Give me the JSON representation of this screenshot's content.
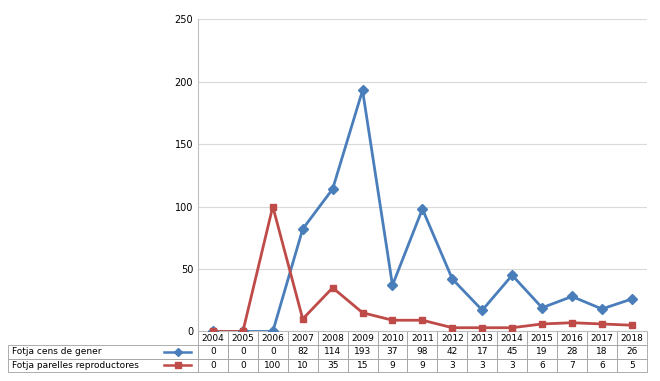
{
  "chart_data": {
    "type": "line",
    "categories": [
      "2004",
      "2005",
      "2006",
      "2007",
      "2008",
      "2009",
      "2010",
      "2011",
      "2012",
      "2013",
      "2014",
      "2015",
      "2016",
      "2017",
      "2018"
    ],
    "series": [
      {
        "name": "Fotja cens de gener",
        "color": "#4a7ebb",
        "marker": "diamond",
        "values": [
          0,
          0,
          0,
          82,
          114,
          193,
          37,
          98,
          42,
          17,
          45,
          19,
          28,
          18,
          26
        ]
      },
      {
        "name": "Fotja parelles reproductores",
        "color": "#be4b48",
        "marker": "square",
        "values": [
          0,
          0,
          100,
          10,
          35,
          15,
          9,
          9,
          3,
          3,
          3,
          6,
          7,
          6,
          5
        ]
      }
    ],
    "ylim": [
      0,
      250
    ],
    "yticks": [
      0,
      50,
      100,
      150,
      200,
      250
    ],
    "grid": true,
    "tick_labels": "y"
  }
}
